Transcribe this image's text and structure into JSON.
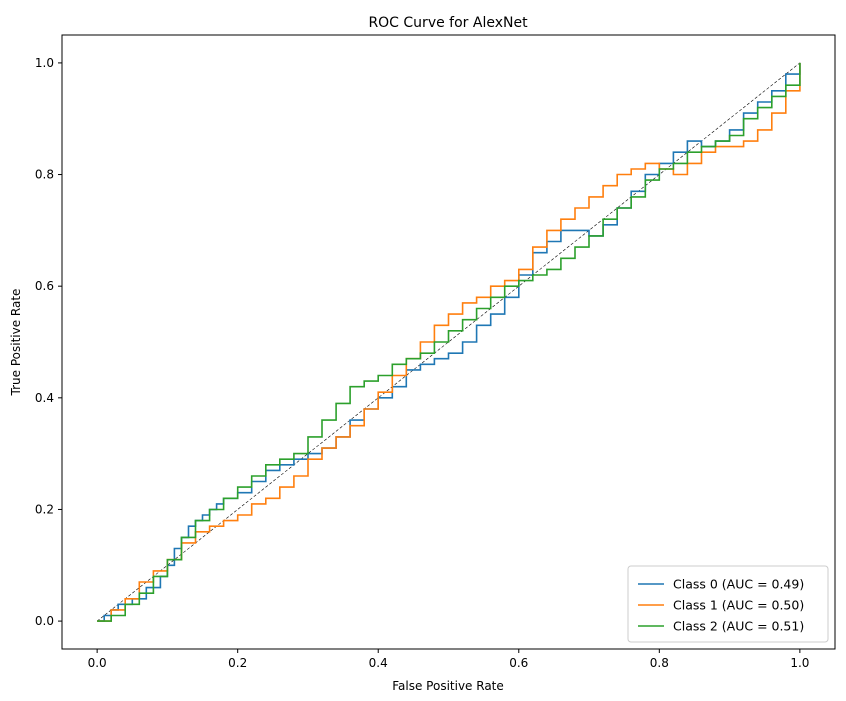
{
  "chart_data": {
    "type": "line",
    "title": "ROC Curve for AlexNet",
    "xlabel": "False Positive Rate",
    "ylabel": "True Positive Rate",
    "xlim": [
      -0.05,
      1.05
    ],
    "ylim": [
      -0.05,
      1.05
    ],
    "xticks": [
      "0.0",
      "0.2",
      "0.4",
      "0.6",
      "0.8",
      "1.0"
    ],
    "yticks": [
      "0.0",
      "0.2",
      "0.4",
      "0.6",
      "0.8",
      "1.0"
    ],
    "grid": false,
    "legend_position": "lower-right",
    "diagonal": {
      "x": [
        0,
        1
      ],
      "y": [
        0,
        1
      ],
      "color": "#000000",
      "style": "dashed"
    },
    "series": [
      {
        "name": "Class 0 (AUC = 0.49)",
        "color": "#1f77b4",
        "x": [
          0.0,
          0.01,
          0.02,
          0.03,
          0.05,
          0.07,
          0.09,
          0.1,
          0.11,
          0.12,
          0.13,
          0.14,
          0.15,
          0.16,
          0.17,
          0.18,
          0.2,
          0.22,
          0.24,
          0.26,
          0.28,
          0.3,
          0.32,
          0.34,
          0.36,
          0.38,
          0.4,
          0.42,
          0.44,
          0.46,
          0.48,
          0.5,
          0.52,
          0.54,
          0.56,
          0.58,
          0.6,
          0.62,
          0.64,
          0.66,
          0.68,
          0.7,
          0.72,
          0.74,
          0.76,
          0.78,
          0.8,
          0.82,
          0.84,
          0.86,
          0.88,
          0.9,
          0.92,
          0.94,
          0.96,
          0.98,
          1.0
        ],
        "y": [
          0.0,
          0.01,
          0.02,
          0.03,
          0.04,
          0.06,
          0.08,
          0.1,
          0.13,
          0.15,
          0.17,
          0.18,
          0.19,
          0.2,
          0.21,
          0.22,
          0.23,
          0.25,
          0.27,
          0.28,
          0.29,
          0.3,
          0.31,
          0.33,
          0.36,
          0.38,
          0.4,
          0.42,
          0.45,
          0.46,
          0.47,
          0.48,
          0.5,
          0.53,
          0.55,
          0.58,
          0.62,
          0.66,
          0.68,
          0.7,
          0.7,
          0.69,
          0.71,
          0.74,
          0.77,
          0.8,
          0.82,
          0.84,
          0.86,
          0.85,
          0.86,
          0.88,
          0.91,
          0.93,
          0.95,
          0.98,
          1.0
        ]
      },
      {
        "name": "Class 1 (AUC = 0.50)",
        "color": "#ff7f0e",
        "x": [
          0.0,
          0.02,
          0.04,
          0.06,
          0.08,
          0.1,
          0.12,
          0.14,
          0.16,
          0.18,
          0.2,
          0.22,
          0.24,
          0.26,
          0.28,
          0.3,
          0.32,
          0.34,
          0.36,
          0.38,
          0.4,
          0.42,
          0.44,
          0.46,
          0.48,
          0.5,
          0.52,
          0.54,
          0.56,
          0.58,
          0.6,
          0.62,
          0.64,
          0.66,
          0.68,
          0.7,
          0.72,
          0.74,
          0.76,
          0.78,
          0.8,
          0.82,
          0.84,
          0.86,
          0.88,
          0.9,
          0.92,
          0.94,
          0.96,
          0.98,
          1.0
        ],
        "y": [
          0.0,
          0.02,
          0.04,
          0.07,
          0.09,
          0.11,
          0.14,
          0.16,
          0.17,
          0.18,
          0.19,
          0.21,
          0.22,
          0.24,
          0.26,
          0.29,
          0.31,
          0.33,
          0.35,
          0.38,
          0.41,
          0.44,
          0.47,
          0.5,
          0.53,
          0.55,
          0.57,
          0.58,
          0.6,
          0.61,
          0.63,
          0.67,
          0.7,
          0.72,
          0.74,
          0.76,
          0.78,
          0.8,
          0.81,
          0.82,
          0.81,
          0.8,
          0.82,
          0.84,
          0.85,
          0.85,
          0.86,
          0.88,
          0.91,
          0.95,
          1.0
        ]
      },
      {
        "name": "Class 2 (AUC = 0.51)",
        "color": "#2ca02c",
        "x": [
          0.0,
          0.02,
          0.04,
          0.06,
          0.08,
          0.1,
          0.12,
          0.14,
          0.16,
          0.18,
          0.2,
          0.22,
          0.24,
          0.26,
          0.28,
          0.3,
          0.32,
          0.34,
          0.36,
          0.38,
          0.4,
          0.42,
          0.44,
          0.46,
          0.48,
          0.5,
          0.52,
          0.54,
          0.56,
          0.58,
          0.6,
          0.62,
          0.64,
          0.66,
          0.68,
          0.7,
          0.72,
          0.74,
          0.76,
          0.78,
          0.8,
          0.82,
          0.84,
          0.86,
          0.88,
          0.9,
          0.92,
          0.94,
          0.96,
          0.98,
          1.0
        ],
        "y": [
          0.0,
          0.01,
          0.03,
          0.05,
          0.08,
          0.11,
          0.15,
          0.18,
          0.2,
          0.22,
          0.24,
          0.26,
          0.28,
          0.29,
          0.3,
          0.33,
          0.36,
          0.39,
          0.42,
          0.43,
          0.44,
          0.46,
          0.47,
          0.48,
          0.5,
          0.52,
          0.54,
          0.56,
          0.58,
          0.6,
          0.61,
          0.62,
          0.63,
          0.65,
          0.67,
          0.69,
          0.72,
          0.74,
          0.76,
          0.79,
          0.81,
          0.82,
          0.84,
          0.85,
          0.86,
          0.87,
          0.9,
          0.92,
          0.94,
          0.96,
          1.0
        ]
      }
    ]
  }
}
